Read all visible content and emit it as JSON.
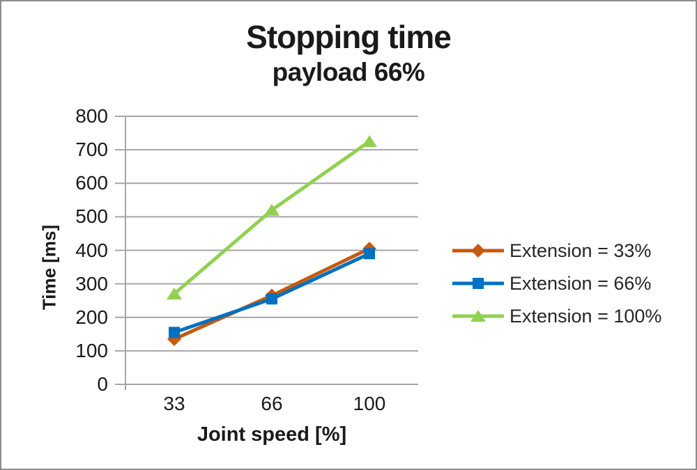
{
  "frame": {
    "background": "#ffffff",
    "border_color": "#8c8c8c"
  },
  "chart_data": {
    "type": "line",
    "title": "Stopping time",
    "subtitle": "payload 66%",
    "xlabel": "Joint speed [%]",
    "ylabel": "Time [ms]",
    "categories": [
      "33",
      "66",
      "100"
    ],
    "series": [
      {
        "name": "Extension = 33%",
        "color": "#C55A11",
        "marker": "diamond",
        "values": [
          135,
          265,
          405
        ]
      },
      {
        "name": "Extension = 66%",
        "color": "#0070C0",
        "marker": "square",
        "values": [
          155,
          255,
          390
        ]
      },
      {
        "name": "Extension = 100%",
        "color": "#92D050",
        "marker": "triangle",
        "values": [
          270,
          520,
          725
        ]
      }
    ],
    "y_axis": {
      "min": 0,
      "max": 800,
      "step": 100
    },
    "x_axis_type": "category",
    "grid": {
      "visible": true,
      "color": "#A6A6A6"
    },
    "legend_position": "right",
    "text_color": "#1a1a1a"
  }
}
